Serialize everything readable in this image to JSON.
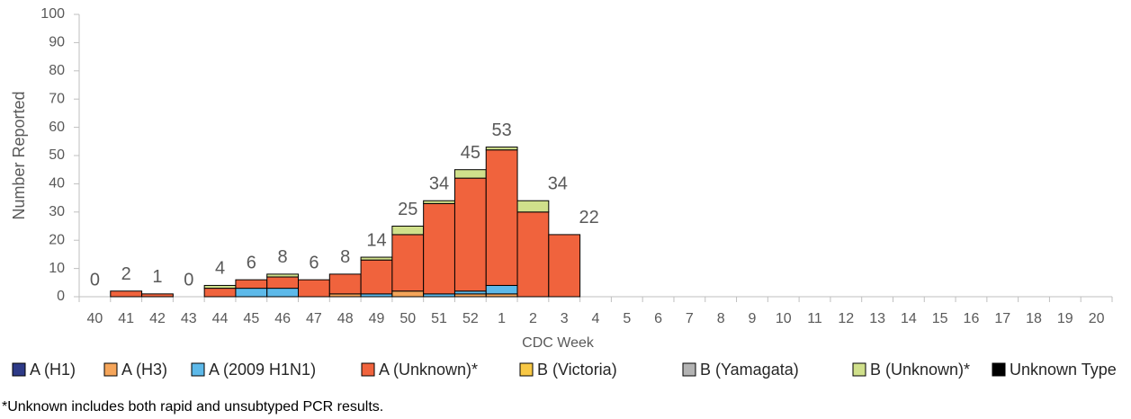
{
  "chart_data": {
    "type": "stacked-bar",
    "x_label": "CDC Week",
    "y_label": "Number Reported",
    "footnote": "*Unknown includes both rapid and unsubtyped PCR results.",
    "categories": [
      "40",
      "41",
      "42",
      "43",
      "44",
      "45",
      "46",
      "47",
      "48",
      "49",
      "50",
      "51",
      "52",
      "1",
      "2",
      "3",
      "4",
      "5",
      "6",
      "7",
      "8",
      "9",
      "10",
      "11",
      "12",
      "13",
      "14",
      "15",
      "16",
      "17",
      "18",
      "19",
      "20"
    ],
    "totals": [
      0,
      2,
      1,
      0,
      4,
      6,
      8,
      6,
      8,
      14,
      25,
      34,
      45,
      53,
      34,
      22,
      null,
      null,
      null,
      null,
      null,
      null,
      null,
      null,
      null,
      null,
      null,
      null,
      null,
      null,
      null,
      null,
      null
    ],
    "ylim": [
      0,
      100
    ],
    "yticks": [
      0,
      10,
      20,
      30,
      40,
      50,
      60,
      70,
      80,
      90,
      100
    ],
    "series": [
      {
        "name": "A (H1)",
        "color": "#2e3a87",
        "values": [
          0,
          0,
          0,
          0,
          0,
          0,
          0,
          0,
          0,
          0,
          0,
          0,
          0,
          0,
          0,
          0,
          null,
          null,
          null,
          null,
          null,
          null,
          null,
          null,
          null,
          null,
          null,
          null,
          null,
          null,
          null,
          null,
          null
        ]
      },
      {
        "name": "A (H3)",
        "color": "#f5a55a",
        "values": [
          0,
          0,
          0,
          0,
          0,
          0,
          0,
          0,
          1,
          0,
          2,
          0,
          1,
          1,
          0,
          0,
          null,
          null,
          null,
          null,
          null,
          null,
          null,
          null,
          null,
          null,
          null,
          null,
          null,
          null,
          null,
          null,
          null
        ]
      },
      {
        "name": "A (2009 H1N1)",
        "color": "#5db9e9",
        "values": [
          0,
          0,
          0,
          0,
          0,
          3,
          3,
          0,
          0,
          1,
          0,
          1,
          1,
          3,
          0,
          0,
          null,
          null,
          null,
          null,
          null,
          null,
          null,
          null,
          null,
          null,
          null,
          null,
          null,
          null,
          null,
          null,
          null
        ]
      },
      {
        "name": "A (Unknown)*",
        "color": "#f0633d",
        "values": [
          0,
          2,
          1,
          0,
          3,
          3,
          4,
          6,
          7,
          12,
          20,
          32,
          40,
          48,
          30,
          22,
          null,
          null,
          null,
          null,
          null,
          null,
          null,
          null,
          null,
          null,
          null,
          null,
          null,
          null,
          null,
          null,
          null
        ]
      },
      {
        "name": "B (Victoria)",
        "color": "#f8c845",
        "values": [
          0,
          0,
          0,
          0,
          0,
          0,
          0,
          0,
          0,
          0,
          0,
          0,
          0,
          0,
          0,
          0,
          null,
          null,
          null,
          null,
          null,
          null,
          null,
          null,
          null,
          null,
          null,
          null,
          null,
          null,
          null,
          null,
          null
        ]
      },
      {
        "name": "B (Yamagata)",
        "color": "#b3b3b3",
        "values": [
          0,
          0,
          0,
          0,
          0,
          0,
          0,
          0,
          0,
          0,
          0,
          0,
          0,
          0,
          0,
          0,
          null,
          null,
          null,
          null,
          null,
          null,
          null,
          null,
          null,
          null,
          null,
          null,
          null,
          null,
          null,
          null,
          null
        ]
      },
      {
        "name": "B (Unknown)*",
        "color": "#d0e08b",
        "values": [
          0,
          0,
          0,
          0,
          1,
          0,
          1,
          0,
          0,
          1,
          3,
          1,
          3,
          1,
          4,
          0,
          null,
          null,
          null,
          null,
          null,
          null,
          null,
          null,
          null,
          null,
          null,
          null,
          null,
          null,
          null,
          null,
          null
        ]
      },
      {
        "name": "Unknown Type",
        "color": "#000000",
        "values": [
          0,
          0,
          0,
          0,
          0,
          0,
          0,
          0,
          0,
          0,
          0,
          0,
          0,
          0,
          0,
          0,
          null,
          null,
          null,
          null,
          null,
          null,
          null,
          null,
          null,
          null,
          null,
          null,
          null,
          null,
          null,
          null,
          null
        ]
      }
    ]
  }
}
